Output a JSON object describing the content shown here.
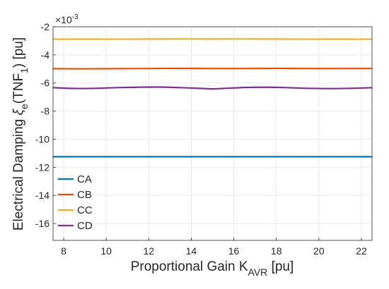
{
  "chart_data": {
    "type": "line",
    "title": "",
    "exponent_label": "×10",
    "exponent_power": "-3",
    "xlabel": {
      "text": "Proportional Gain K",
      "subscript": "AVR",
      "suffix": " [pu]"
    },
    "ylabel": {
      "prefix": "Electrical Damping ",
      "symbol": "ξ",
      "symbol_sub": "e",
      "middle": "(TNF",
      "middle_sub": "1",
      "suffix": ") [pu]"
    },
    "xlim": [
      7.5,
      22.5
    ],
    "ylim": [
      -17.2,
      -2
    ],
    "x_ticks": [
      8,
      10,
      12,
      14,
      16,
      18,
      20,
      22
    ],
    "x_tick_labels": [
      "8",
      "10",
      "12",
      "14",
      "16",
      "18",
      "20",
      "22"
    ],
    "y_ticks": [
      -16,
      -14,
      -12,
      -10,
      -8,
      -6,
      -4,
      -2
    ],
    "y_tick_labels": [
      "-16",
      "-14",
      "-12",
      "-10",
      "-8",
      "-6",
      "-4",
      "-2"
    ],
    "grid": true,
    "legend_position": "bottom-left",
    "series": [
      {
        "name": "CA",
        "color": "#0072BD",
        "x": [
          7.5,
          10,
          12.5,
          15,
          17.5,
          20,
          22.5
        ],
        "y": [
          -11.25,
          -11.25,
          -11.25,
          -11.25,
          -11.25,
          -11.25,
          -11.25
        ]
      },
      {
        "name": "CB",
        "color": "#D95319",
        "x": [
          7.5,
          9,
          10.5,
          12,
          13.5,
          15,
          16.5,
          18,
          19.5,
          21,
          22.5
        ],
        "y": [
          -4.98,
          -4.99,
          -4.98,
          -4.97,
          -4.96,
          -4.97,
          -4.97,
          -4.96,
          -4.97,
          -4.97,
          -4.97
        ]
      },
      {
        "name": "CC",
        "color": "#EDB120",
        "x": [
          7.5,
          10,
          12.5,
          15,
          17.5,
          20,
          22.5
        ],
        "y": [
          -2.88,
          -2.88,
          -2.87,
          -2.87,
          -2.87,
          -2.88,
          -2.88
        ]
      },
      {
        "name": "CD",
        "color": "#7E2F8E",
        "x": [
          7.5,
          8.5,
          9.5,
          10.5,
          11.5,
          12.5,
          13.5,
          14.5,
          15.0,
          15.5,
          16.5,
          17.5,
          18.5,
          19.5,
          20.5,
          21.5,
          22.5
        ],
        "y": [
          -6.33,
          -6.39,
          -6.38,
          -6.33,
          -6.3,
          -6.29,
          -6.33,
          -6.39,
          -6.42,
          -6.39,
          -6.32,
          -6.3,
          -6.33,
          -6.38,
          -6.4,
          -6.38,
          -6.33
        ]
      }
    ]
  }
}
